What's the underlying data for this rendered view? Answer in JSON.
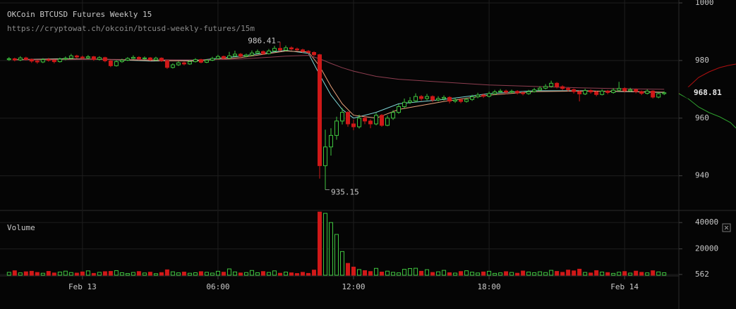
{
  "chart_data": [
    {
      "type": "candlestick",
      "title": "OKCoin BTCUSD Futures Weekly 15",
      "subtitle": "https://cryptowat.ch/okcoin/btcusd-weekly-futures/15m",
      "colors": {
        "up": "#3fc43f",
        "down": "#d01818"
      },
      "xlim": [
        -3.65,
        26.4
      ],
      "ylim": [
        928.2,
        1001
      ],
      "yticks": [
        940,
        960,
        980,
        1000
      ],
      "grid": true,
      "x": [
        -3.25,
        -3,
        -2.75,
        -2.5,
        -2.25,
        -2,
        -1.75,
        -1.5,
        -1.25,
        -1,
        -0.75,
        -0.5,
        -0.25,
        0,
        0.25,
        0.5,
        0.75,
        1,
        1.25,
        1.5,
        1.75,
        2,
        2.25,
        2.5,
        2.75,
        3,
        3.25,
        3.5,
        3.75,
        4,
        4.25,
        4.5,
        4.75,
        5,
        5.25,
        5.5,
        5.75,
        6,
        6.25,
        6.5,
        6.75,
        7,
        7.25,
        7.5,
        7.75,
        8,
        8.25,
        8.5,
        8.75,
        9,
        9.25,
        9.5,
        9.75,
        10,
        10.25,
        10.5,
        10.75,
        11,
        11.25,
        11.5,
        11.75,
        12,
        12.25,
        12.5,
        12.75,
        13,
        13.25,
        13.5,
        13.75,
        14,
        14.25,
        14.5,
        14.75,
        15,
        15.25,
        15.5,
        15.75,
        16,
        16.25,
        16.5,
        16.75,
        17,
        17.25,
        17.5,
        17.75,
        18,
        18.25,
        18.5,
        18.75,
        19,
        19.25,
        19.5,
        19.75,
        20,
        20.25,
        20.5,
        20.75,
        21,
        21.25,
        21.5,
        21.75,
        22,
        22.25,
        22.5,
        22.75,
        23,
        23.25,
        23.5,
        23.75,
        24,
        24.25,
        24.5,
        24.75,
        25,
        25.25,
        25.5,
        25.75
      ],
      "open": [
        980.3,
        980.6,
        980.2,
        980.9,
        980.4,
        979.8,
        979.5,
        980.3,
        980.1,
        979.6,
        980.5,
        980.8,
        981.6,
        981.2,
        980.9,
        981.3,
        980.4,
        981.0,
        979.9,
        978.2,
        979.6,
        980.1,
        980.7,
        981.1,
        980.6,
        980.9,
        980.2,
        980.8,
        979.9,
        977.6,
        978.5,
        979.2,
        978.8,
        979.6,
        980.3,
        979.4,
        980.1,
        980.7,
        981.4,
        980.8,
        981.6,
        982.2,
        981.5,
        981.9,
        982.6,
        983.1,
        982.4,
        983.3,
        984.2,
        983.6,
        984.4,
        984.0,
        983.7,
        983.2,
        982.8,
        982.0,
        943.5,
        950.0,
        954.0,
        959.0,
        962.0,
        958.0,
        957.0,
        960.0,
        959.0,
        958.0,
        961.0,
        957.5,
        960.0,
        962.0,
        964.0,
        965.5,
        966.0,
        967.5,
        966.8,
        967.5,
        966.3,
        966.8,
        967.2,
        965.9,
        966.3,
        965.8,
        966.5,
        967.4,
        968.0,
        967.6,
        968.5,
        969.1,
        969.4,
        969.0,
        969.3,
        968.8,
        968.5,
        969.2,
        969.8,
        970.4,
        971.0,
        972.1,
        970.9,
        970.3,
        969.9,
        969.2,
        968.4,
        969.6,
        969.1,
        968.2,
        969.4,
        968.9,
        969.7,
        970.3,
        969.5,
        969.9,
        969.2,
        968.6,
        969.4,
        967.3,
        968.5
      ],
      "high": [
        981.2,
        981.0,
        981.5,
        981.3,
        980.7,
        980.2,
        980.8,
        980.9,
        980.4,
        981.0,
        981.4,
        982.3,
        982.0,
        981.7,
        981.9,
        981.6,
        981.5,
        981.3,
        980.2,
        980.0,
        980.6,
        981.2,
        981.8,
        981.5,
        981.4,
        981.2,
        981.3,
        981.1,
        980.2,
        979.0,
        979.7,
        979.6,
        980.1,
        980.8,
        980.6,
        980.5,
        981.3,
        982.0,
        981.7,
        983.0,
        983.4,
        982.6,
        982.4,
        983.5,
        983.8,
        983.5,
        984.0,
        985.1,
        986.41,
        985.2,
        984.9,
        984.5,
        984.1,
        983.6,
        983.2,
        982.3,
        956.0,
        956.5,
        960.5,
        963.5,
        962.4,
        959.5,
        961.2,
        960.8,
        959.6,
        961.8,
        961.4,
        960.9,
        962.8,
        964.9,
        966.8,
        967.3,
        968.6,
        968.0,
        968.4,
        967.9,
        967.6,
        967.9,
        967.6,
        967.0,
        966.9,
        967.1,
        968.1,
        968.8,
        968.5,
        969.2,
        969.8,
        970.1,
        969.9,
        969.9,
        969.7,
        969.3,
        969.8,
        970.5,
        971.1,
        971.8,
        973.0,
        972.5,
        971.4,
        970.8,
        970.3,
        969.6,
        970.2,
        970.0,
        969.5,
        970.0,
        969.8,
        970.4,
        972.6,
        970.7,
        970.5,
        970.3,
        969.6,
        970.0,
        969.7,
        969.0,
        969.3
      ],
      "low": [
        979.9,
        979.7,
        979.8,
        980.0,
        979.2,
        978.9,
        979.1,
        979.6,
        979.0,
        979.3,
        980.1,
        980.4,
        980.7,
        980.3,
        980.5,
        979.9,
        980.0,
        979.4,
        977.7,
        977.9,
        979.2,
        979.8,
        980.3,
        980.1,
        980.2,
        979.8,
        979.9,
        979.5,
        977.1,
        977.2,
        978.1,
        978.3,
        978.5,
        979.3,
        979.0,
        979.1,
        979.8,
        980.4,
        980.3,
        980.5,
        981.2,
        981.0,
        981.1,
        981.6,
        982.2,
        982.0,
        982.1,
        983.0,
        983.2,
        983.3,
        983.5,
        983.2,
        982.7,
        982.3,
        981.5,
        939.0,
        935.15,
        947.0,
        952.5,
        957.8,
        957.0,
        955.8,
        956.4,
        957.9,
        956.5,
        957.5,
        957.0,
        957.2,
        959.4,
        961.5,
        963.4,
        964.9,
        965.4,
        966.0,
        966.2,
        965.6,
        965.8,
        966.1,
        965.1,
        965.3,
        965.2,
        965.4,
        966.0,
        966.9,
        967.0,
        967.2,
        968.0,
        968.7,
        968.4,
        968.6,
        968.2,
        967.9,
        968.1,
        968.9,
        969.4,
        970.0,
        970.6,
        970.3,
        969.7,
        969.3,
        968.5,
        965.8,
        968.0,
        968.5,
        967.6,
        967.9,
        968.3,
        968.5,
        969.3,
        968.9,
        969.1,
        968.6,
        968.0,
        968.2,
        966.8,
        966.9,
        968.0
      ],
      "close": [
        980.6,
        980.2,
        980.9,
        980.4,
        979.8,
        979.5,
        980.3,
        980.1,
        979.6,
        980.5,
        980.8,
        981.6,
        981.2,
        980.9,
        981.3,
        980.4,
        981.0,
        979.9,
        978.2,
        979.6,
        980.1,
        980.7,
        981.1,
        980.6,
        980.9,
        980.2,
        980.8,
        979.9,
        977.6,
        978.5,
        979.2,
        978.8,
        979.6,
        980.3,
        979.4,
        980.1,
        980.7,
        981.4,
        980.8,
        981.6,
        982.2,
        981.5,
        981.9,
        982.6,
        983.1,
        982.4,
        983.3,
        984.2,
        983.6,
        984.4,
        984.0,
        983.7,
        983.2,
        982.8,
        982.0,
        943.5,
        950.0,
        954.0,
        959.0,
        962.0,
        958.0,
        957.0,
        960.0,
        959.0,
        958.0,
        961.0,
        957.5,
        960.0,
        962.0,
        964.0,
        965.5,
        966.0,
        967.5,
        966.8,
        967.5,
        966.3,
        966.8,
        967.2,
        965.9,
        966.3,
        965.8,
        966.5,
        967.4,
        968.0,
        967.6,
        968.5,
        969.1,
        969.4,
        969.0,
        969.3,
        968.8,
        968.5,
        969.2,
        969.8,
        970.4,
        971.0,
        972.1,
        970.9,
        970.3,
        969.9,
        969.2,
        968.4,
        969.6,
        969.1,
        968.2,
        969.4,
        968.9,
        969.7,
        970.3,
        969.5,
        969.9,
        969.2,
        968.6,
        969.4,
        967.3,
        968.5,
        968.81
      ],
      "line_x": [
        -3,
        -1,
        1,
        3,
        5,
        7,
        9,
        10,
        10.5,
        11,
        11.5,
        12,
        13,
        14,
        16,
        18,
        20,
        22,
        24,
        25.75
      ],
      "lines": [
        {
          "color": "#7fd6d6",
          "values": [
            980.3,
            980.6,
            980.4,
            979.8,
            980.0,
            981.5,
            983.5,
            982.5,
            975,
            968,
            963,
            960,
            962,
            965,
            966.5,
            968.5,
            969.5,
            969.5,
            969.2,
            968.9
          ]
        },
        {
          "color": "#e8a07a",
          "values": [
            980.3,
            980.5,
            980.4,
            980.0,
            979.8,
            981.0,
            983.3,
            983.0,
            978,
            971,
            965,
            961,
            960,
            963,
            965.8,
            968,
            969.2,
            969.4,
            969.3,
            969.0
          ]
        },
        {
          "color": "#8e3e50",
          "values": [
            980.2,
            980.3,
            980.4,
            980.3,
            980.2,
            980.5,
            981.5,
            981.8,
            980.6,
            979,
            977.5,
            976.3,
            974.5,
            973.5,
            972.5,
            971.5,
            971,
            970.5,
            970.2,
            970.0
          ]
        }
      ]
    },
    {
      "type": "bar",
      "title": "Volume",
      "ylim": [
        0,
        48650
      ],
      "yticks": [
        562,
        20000,
        40000
      ],
      "xticks": [
        {
          "value": 0,
          "label": "Feb 13"
        },
        {
          "value": 6,
          "label": "06:00"
        },
        {
          "value": 12,
          "label": "12:00"
        },
        {
          "value": 18,
          "label": "18:00"
        },
        {
          "value": 24,
          "label": "Feb 14"
        }
      ],
      "values": [
        2200,
        3400,
        1800,
        2600,
        3000,
        2100,
        1500,
        2900,
        1700,
        2400,
        3100,
        2000,
        1600,
        2500,
        3300,
        1400,
        2200,
        2700,
        2900,
        3500,
        1900,
        1300,
        2100,
        2800,
        1700,
        2300,
        1200,
        2000,
        4100,
        2600,
        1800,
        2400,
        1500,
        1900,
        2700,
        2200,
        1600,
        3000,
        2300,
        4800,
        2500,
        1700,
        2000,
        3600,
        1900,
        2800,
        2100,
        3300,
        1500,
        2400,
        1800,
        1300,
        2200,
        1400,
        3900,
        48000,
        47000,
        40000,
        31000,
        18000,
        9000,
        6200,
        4300,
        3500,
        2800,
        5200,
        2400,
        3100,
        2200,
        1800,
        4500,
        5100,
        5300,
        3000,
        4200,
        2100,
        2600,
        3700,
        1900,
        1600,
        2800,
        3400,
        2300,
        1700,
        2500,
        3000,
        1400,
        1800,
        2700,
        2100,
        1500,
        3200,
        2400,
        1900,
        2600,
        2000,
        3700,
        2900,
        2200,
        3900,
        3300,
        4600,
        2100,
        1700,
        3500,
        2400,
        2000,
        1400,
        2300,
        2800,
        1600,
        3100,
        2200,
        1800,
        3400,
        2500,
        1900
      ]
    }
  ]
}
